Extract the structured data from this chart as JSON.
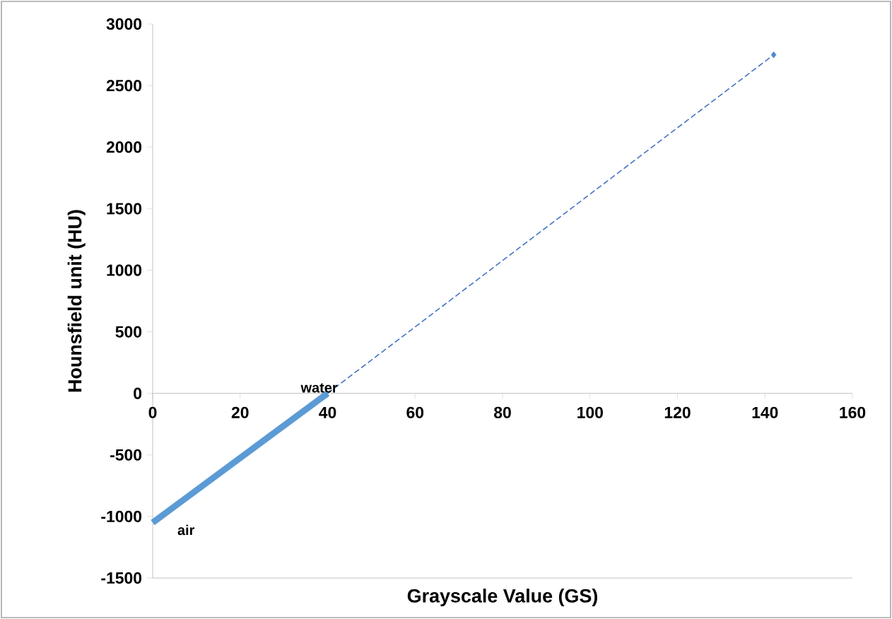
{
  "chart_data": {
    "type": "line",
    "xlabel": "Grayscale Value (GS)",
    "ylabel": "Hounsfield unit (HU)",
    "xlim": [
      0,
      160
    ],
    "xticks": [
      0,
      20,
      40,
      60,
      80,
      100,
      120,
      140,
      160
    ],
    "ylim": [
      -1500,
      3000
    ],
    "yticks": [
      -1500,
      -1000,
      -500,
      0,
      500,
      1000,
      1500,
      2000,
      2500,
      3000
    ],
    "series": [
      {
        "color": "#5b9bd5",
        "x": [
          0,
          40
        ],
        "values": [
          -1050,
          0
        ],
        "line_style": "solid",
        "marker": "none"
      },
      {
        "color": "#4472c4",
        "x": [
          40,
          142
        ],
        "values": [
          0,
          2750
        ],
        "line_style": "dashed",
        "marker": "none"
      },
      {
        "type": "scatter",
        "color": "#4a8ad4",
        "x": [
          142
        ],
        "values": [
          2750
        ],
        "marker": "diamond"
      }
    ],
    "annotations": [
      {
        "text": "air",
        "x": 0,
        "y": -1050
      },
      {
        "text": "water",
        "x": 40,
        "y": 0
      }
    ]
  }
}
